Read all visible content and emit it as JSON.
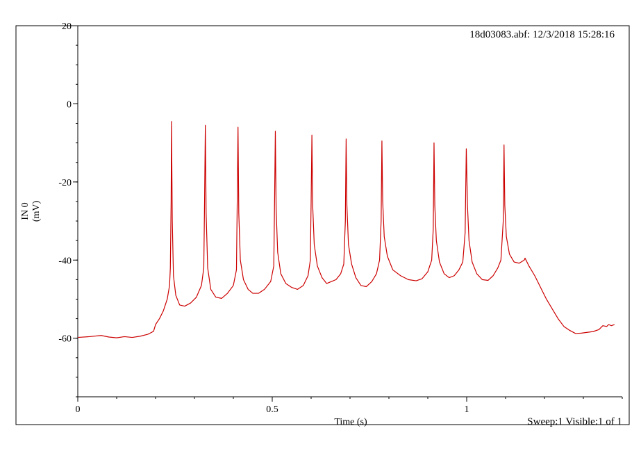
{
  "header": {
    "file_info": "18d03083.abf: 12/3/2018 15:28:16"
  },
  "footer": {
    "sweep_info": "Sweep:1 Visible:1 of 1"
  },
  "colors": {
    "trace": "#cc0000",
    "axis": "#000000",
    "background": "#ffffff"
  },
  "chart_data": {
    "type": "line",
    "xlabel": "Time (s)",
    "ylabel_line1": "IN 0",
    "ylabel_line2": "(mV)",
    "xlim": [
      0,
      1.4
    ],
    "ylim": [
      -75,
      20
    ],
    "x_ticks": [
      {
        "value": 0,
        "label": "0"
      },
      {
        "value": 0.5,
        "label": "0.5"
      },
      {
        "value": 1,
        "label": "1"
      }
    ],
    "x_minor_step": 0.1,
    "y_ticks": [
      {
        "value": 20,
        "label": "20"
      },
      {
        "value": 0,
        "label": "0"
      },
      {
        "value": -20,
        "label": "-20"
      },
      {
        "value": -40,
        "label": "-40"
      },
      {
        "value": -60,
        "label": "-60"
      }
    ],
    "y_minor_step": 5,
    "grid": false,
    "series": [
      {
        "color": "#cc0000",
        "points": [
          [
            0.0,
            -59.8
          ],
          [
            0.03,
            -59.6
          ],
          [
            0.06,
            -59.3
          ],
          [
            0.08,
            -59.7
          ],
          [
            0.1,
            -59.9
          ],
          [
            0.12,
            -59.6
          ],
          [
            0.14,
            -59.8
          ],
          [
            0.16,
            -59.5
          ],
          [
            0.18,
            -59.0
          ],
          [
            0.19,
            -58.5
          ],
          [
            0.195,
            -58.2
          ],
          [
            0.2,
            -56.5
          ],
          [
            0.21,
            -55.0
          ],
          [
            0.22,
            -53.0
          ],
          [
            0.23,
            -50.0
          ],
          [
            0.236,
            -46.5
          ],
          [
            0.238,
            -42.0
          ],
          [
            0.24,
            -25.0
          ],
          [
            0.241,
            -4.5
          ],
          [
            0.243,
            -30.0
          ],
          [
            0.246,
            -44.0
          ],
          [
            0.252,
            -49.0
          ],
          [
            0.262,
            -51.5
          ],
          [
            0.275,
            -51.8
          ],
          [
            0.29,
            -51.0
          ],
          [
            0.305,
            -49.5
          ],
          [
            0.318,
            -46.5
          ],
          [
            0.324,
            -42.0
          ],
          [
            0.326,
            -25.0
          ],
          [
            0.328,
            -5.5
          ],
          [
            0.33,
            -28.0
          ],
          [
            0.334,
            -42.0
          ],
          [
            0.342,
            -47.5
          ],
          [
            0.355,
            -49.5
          ],
          [
            0.37,
            -49.8
          ],
          [
            0.385,
            -48.5
          ],
          [
            0.4,
            -46.5
          ],
          [
            0.408,
            -42.5
          ],
          [
            0.41,
            -25.0
          ],
          [
            0.412,
            -6.0
          ],
          [
            0.414,
            -28.0
          ],
          [
            0.418,
            -40.0
          ],
          [
            0.426,
            -45.0
          ],
          [
            0.438,
            -47.5
          ],
          [
            0.45,
            -48.5
          ],
          [
            0.465,
            -48.5
          ],
          [
            0.48,
            -47.5
          ],
          [
            0.496,
            -45.5
          ],
          [
            0.504,
            -41.5
          ],
          [
            0.506,
            -25.0
          ],
          [
            0.508,
            -7.0
          ],
          [
            0.51,
            -27.0
          ],
          [
            0.514,
            -38.0
          ],
          [
            0.522,
            -43.5
          ],
          [
            0.535,
            -46.0
          ],
          [
            0.55,
            -47.0
          ],
          [
            0.565,
            -47.5
          ],
          [
            0.58,
            -46.5
          ],
          [
            0.592,
            -44.0
          ],
          [
            0.598,
            -40.0
          ],
          [
            0.6,
            -25.0
          ],
          [
            0.602,
            -8.0
          ],
          [
            0.604,
            -26.0
          ],
          [
            0.608,
            -36.0
          ],
          [
            0.616,
            -41.5
          ],
          [
            0.628,
            -44.5
          ],
          [
            0.64,
            -46.0
          ],
          [
            0.652,
            -45.5
          ],
          [
            0.664,
            -45.0
          ],
          [
            0.676,
            -43.5
          ],
          [
            0.684,
            -41.0
          ],
          [
            0.688,
            -30.0
          ],
          [
            0.69,
            -9.0
          ],
          [
            0.692,
            -26.0
          ],
          [
            0.696,
            -36.0
          ],
          [
            0.704,
            -41.0
          ],
          [
            0.715,
            -44.5
          ],
          [
            0.728,
            -46.5
          ],
          [
            0.742,
            -46.8
          ],
          [
            0.756,
            -45.5
          ],
          [
            0.768,
            -43.5
          ],
          [
            0.776,
            -40.0
          ],
          [
            0.78,
            -30.0
          ],
          [
            0.782,
            -9.5
          ],
          [
            0.784,
            -25.0
          ],
          [
            0.788,
            -34.0
          ],
          [
            0.796,
            -39.0
          ],
          [
            0.81,
            -42.5
          ],
          [
            0.83,
            -44.0
          ],
          [
            0.85,
            -45.0
          ],
          [
            0.87,
            -45.3
          ],
          [
            0.885,
            -44.8
          ],
          [
            0.9,
            -43.0
          ],
          [
            0.91,
            -40.0
          ],
          [
            0.914,
            -32.0
          ],
          [
            0.916,
            -10.0
          ],
          [
            0.918,
            -26.0
          ],
          [
            0.922,
            -35.0
          ],
          [
            0.93,
            -40.5
          ],
          [
            0.942,
            -43.5
          ],
          [
            0.955,
            -44.5
          ],
          [
            0.968,
            -44.0
          ],
          [
            0.98,
            -42.5
          ],
          [
            0.99,
            -40.5
          ],
          [
            0.996,
            -33.0
          ],
          [
            0.999,
            -11.5
          ],
          [
            1.002,
            -26.0
          ],
          [
            1.006,
            -35.0
          ],
          [
            1.014,
            -40.5
          ],
          [
            1.026,
            -43.5
          ],
          [
            1.04,
            -45.0
          ],
          [
            1.055,
            -45.2
          ],
          [
            1.068,
            -44.0
          ],
          [
            1.08,
            -42.0
          ],
          [
            1.088,
            -40.0
          ],
          [
            1.094,
            -30.0
          ],
          [
            1.096,
            -10.5
          ],
          [
            1.098,
            -26.0
          ],
          [
            1.102,
            -34.0
          ],
          [
            1.11,
            -38.5
          ],
          [
            1.122,
            -40.5
          ],
          [
            1.135,
            -40.8
          ],
          [
            1.148,
            -40.0
          ],
          [
            1.15,
            -39.5
          ],
          [
            1.16,
            -41.5
          ],
          [
            1.175,
            -44.0
          ],
          [
            1.19,
            -47.0
          ],
          [
            1.205,
            -50.0
          ],
          [
            1.22,
            -52.5
          ],
          [
            1.235,
            -55.0
          ],
          [
            1.25,
            -57.0
          ],
          [
            1.265,
            -58.0
          ],
          [
            1.28,
            -58.8
          ],
          [
            1.295,
            -58.7
          ],
          [
            1.31,
            -58.5
          ],
          [
            1.325,
            -58.3
          ],
          [
            1.34,
            -57.8
          ],
          [
            1.35,
            -56.8
          ],
          [
            1.36,
            -57.0
          ],
          [
            1.365,
            -56.5
          ],
          [
            1.372,
            -56.8
          ],
          [
            1.38,
            -56.5
          ]
        ]
      }
    ]
  }
}
